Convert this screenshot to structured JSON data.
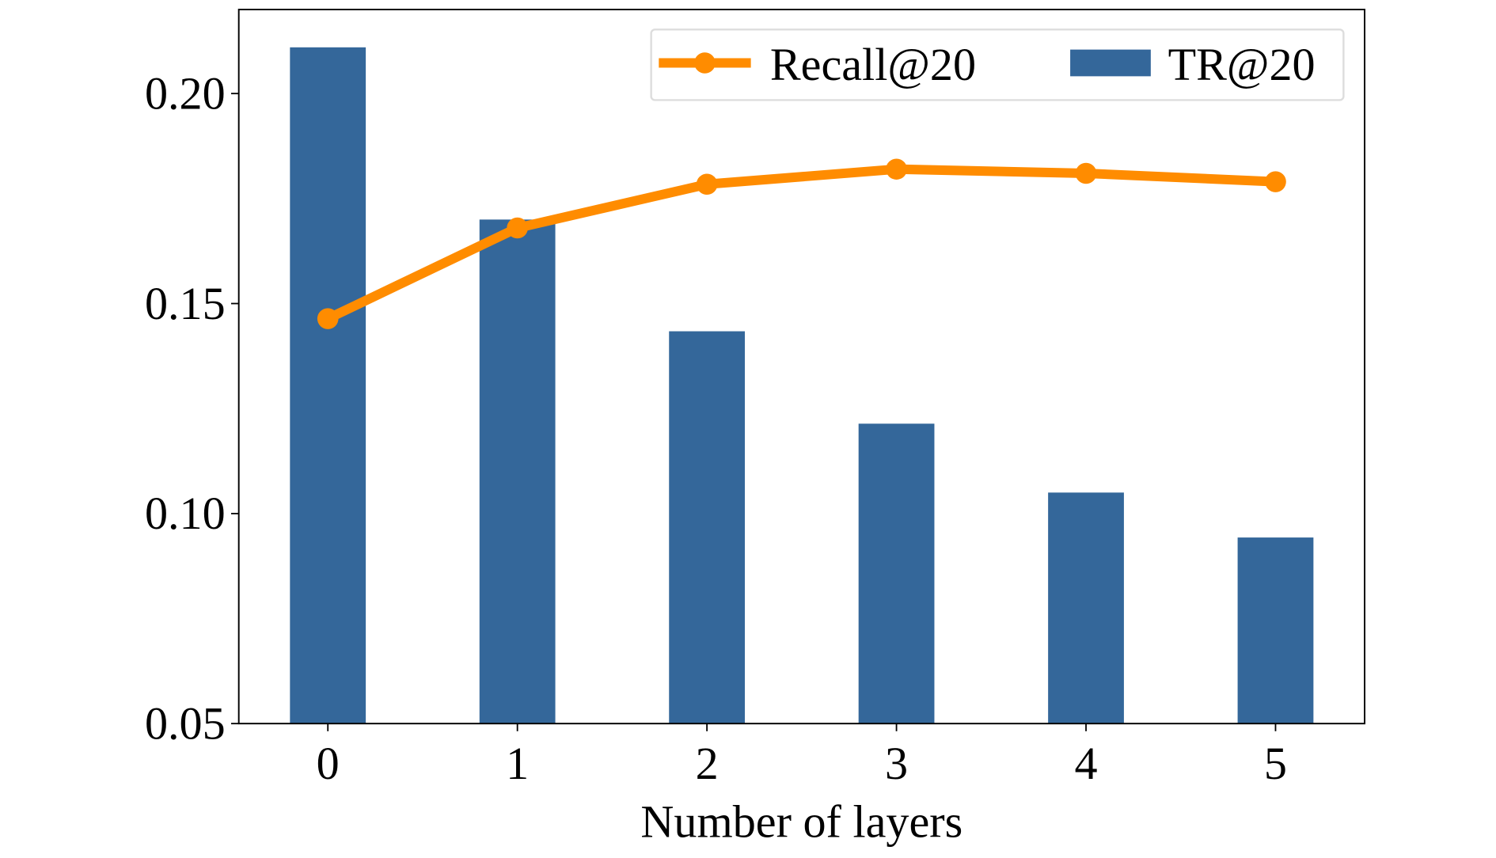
{
  "chart_data": {
    "type": "bar",
    "title": "",
    "xlabel": "Number of layers",
    "ylabel": "",
    "categories": [
      "0",
      "1",
      "2",
      "3",
      "4",
      "5"
    ],
    "xlim": [
      -0.47,
      5.47
    ],
    "ylim": [
      0.05,
      0.22
    ],
    "yticks": [
      0.05,
      0.1,
      0.15,
      0.2
    ],
    "ytick_labels": [
      "0.05",
      "0.10",
      "0.15",
      "0.20"
    ],
    "grid": false,
    "legend_position": "top-right",
    "series": [
      {
        "name": "TR@20",
        "type": "bar",
        "color": "#34679a",
        "values": [
          0.211,
          0.17,
          0.1434,
          0.1214,
          0.105,
          0.0943
        ]
      },
      {
        "name": "Recall@20",
        "type": "line",
        "color": "#ff8c00",
        "values": [
          0.1464,
          0.168,
          0.1784,
          0.182,
          0.181,
          0.179
        ]
      }
    ]
  }
}
